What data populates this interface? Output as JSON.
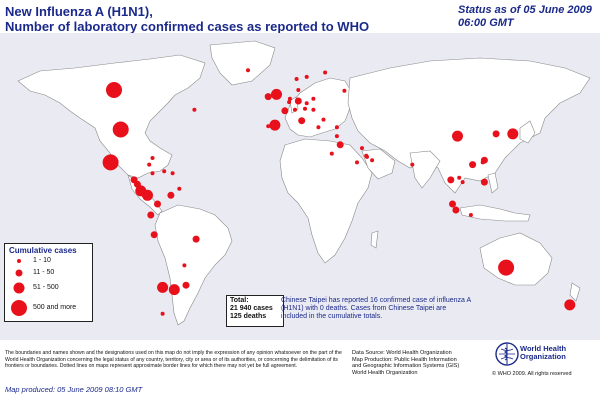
{
  "title_line1": "New Influenza A (H1N1),",
  "title_line2": "Number of  laboratory confirmed cases as reported to WHO",
  "status_line1": "Status as of 05 June 2009",
  "status_line2": "06:00 GMT",
  "colors": {
    "circle": "#e8101a",
    "ocean": "#e9eaf2",
    "land": "#ffffff",
    "border": "#8a8a8a",
    "text_blue": "#1b2a8a"
  },
  "legend": {
    "title": "Cumulative cases",
    "items": [
      {
        "label": "1 - 10",
        "r": 2
      },
      {
        "label": "11 - 50",
        "r": 3.5
      },
      {
        "label": "51 - 500",
        "r": 5.5
      },
      {
        "label": "500 and more",
        "r": 8
      }
    ]
  },
  "total": {
    "label": "Total:",
    "cases": "21 940 cases",
    "deaths": "125 deaths"
  },
  "taipei_note": "Chinese Taipei has reported 16 confirmed case of influenza A (H1N1) with 0 deaths. Cases from Chinese Taipei are included in the cumulative totals.",
  "disclaimer": "The boundaries and names shown and the designations used on this map do not imply the expression of any opinion whatsoever on the part of the World Health Organization concerning the legal status of any country, territory, city or area or of its authorities, or concerning the delimitation of its frontiers or boundaries.  Dotted lines on maps represent approximate border lines for which there may not yet be full agreement.",
  "source_lines": [
    "Data Source: World Health Organization",
    "Map Production: Public Health Information",
    "and Geographic Information Systems (GIS)",
    "World Health Organization"
  ],
  "who_name_line1": "World Health",
  "who_name_line2": "Organization",
  "copyright": "© WHO 2009. All rights reserved",
  "map_produced": "Map produced: 05 June 2009 08:10 GMT",
  "case_markers": [
    {
      "lon": -100,
      "lat": 56,
      "r": 8
    },
    {
      "lon": -96,
      "lat": 38,
      "r": 8
    },
    {
      "lon": -102,
      "lat": 23,
      "r": 8
    },
    {
      "lon": -20,
      "lat": 65,
      "r": 2
    },
    {
      "lon": -52,
      "lat": 47,
      "r": 2
    },
    {
      "lon": -65,
      "lat": 18,
      "r": 2
    },
    {
      "lon": -77,
      "lat": 18,
      "r": 2
    },
    {
      "lon": -79,
      "lat": 22,
      "r": 2
    },
    {
      "lon": -77,
      "lat": 25,
      "r": 2
    },
    {
      "lon": -88,
      "lat": 15,
      "r": 3.5
    },
    {
      "lon": -86,
      "lat": 13,
      "r": 3.5
    },
    {
      "lon": -84,
      "lat": 10,
      "r": 5.5
    },
    {
      "lon": -80,
      "lat": 8,
      "r": 5.5
    },
    {
      "lon": -74,
      "lat": 4,
      "r": 3.5
    },
    {
      "lon": -66,
      "lat": 8,
      "r": 3.5
    },
    {
      "lon": -70,
      "lat": 19,
      "r": 2
    },
    {
      "lon": -61,
      "lat": 11,
      "r": 2
    },
    {
      "lon": -78,
      "lat": -1,
      "r": 3.5
    },
    {
      "lon": -76,
      "lat": -10,
      "r": 3.5
    },
    {
      "lon": -51,
      "lat": -12,
      "r": 3.5
    },
    {
      "lon": -58,
      "lat": -24,
      "r": 2
    },
    {
      "lon": -57,
      "lat": -33,
      "r": 3.5
    },
    {
      "lon": -64,
      "lat": -35,
      "r": 5.5
    },
    {
      "lon": -71,
      "lat": -34,
      "r": 5.5
    },
    {
      "lon": -71,
      "lat": -46,
      "r": 2
    },
    {
      "lon": -3,
      "lat": 54,
      "r": 5.5
    },
    {
      "lon": -8,
      "lat": 53,
      "r": 3.5
    },
    {
      "lon": -4,
      "lat": 40,
      "r": 5.5
    },
    {
      "lon": -8,
      "lat": 39.5,
      "r": 2
    },
    {
      "lon": 2,
      "lat": 46.5,
      "r": 3.5
    },
    {
      "lon": 10,
      "lat": 51,
      "r": 3.5
    },
    {
      "lon": 5,
      "lat": 52,
      "r": 2
    },
    {
      "lon": 4.5,
      "lat": 50.5,
      "r": 2
    },
    {
      "lon": 8,
      "lat": 47,
      "r": 2
    },
    {
      "lon": 14,
      "lat": 47.5,
      "r": 2
    },
    {
      "lon": 12,
      "lat": 42,
      "r": 3.5
    },
    {
      "lon": 19,
      "lat": 52,
      "r": 2
    },
    {
      "lon": 10,
      "lat": 56,
      "r": 2
    },
    {
      "lon": 15,
      "lat": 62,
      "r": 2
    },
    {
      "lon": 9,
      "lat": 61,
      "r": 2
    },
    {
      "lon": 26,
      "lat": 64,
      "r": 2
    },
    {
      "lon": 22,
      "lat": 39,
      "r": 2
    },
    {
      "lon": 25,
      "lat": 42.5,
      "r": 2
    },
    {
      "lon": 19,
      "lat": 47,
      "r": 2
    },
    {
      "lon": 15,
      "lat": 50,
      "r": 2
    },
    {
      "lon": 33,
      "lat": 39,
      "r": 2
    },
    {
      "lon": 35,
      "lat": 31,
      "r": 3.5
    },
    {
      "lon": 30,
      "lat": 27,
      "r": 2
    },
    {
      "lon": 33,
      "lat": 35,
      "r": 2
    },
    {
      "lon": 37.5,
      "lat": 55.7,
      "r": 2
    },
    {
      "lon": 45,
      "lat": 23,
      "r": 2
    },
    {
      "lon": 48,
      "lat": 29.5,
      "r": 2
    },
    {
      "lon": 51,
      "lat": 25.5,
      "r": 2
    },
    {
      "lon": 50.5,
      "lat": 26,
      "r": 2
    },
    {
      "lon": 54,
      "lat": 24,
      "r": 2
    },
    {
      "lon": 105,
      "lat": 35,
      "r": 5.5
    },
    {
      "lon": 114,
      "lat": 22,
      "r": 3.5
    },
    {
      "lon": 128,
      "lat": 36,
      "r": 3.5
    },
    {
      "lon": 138,
      "lat": 36,
      "r": 5.5
    },
    {
      "lon": 121,
      "lat": 24,
      "r": 3.5
    },
    {
      "lon": 121,
      "lat": 14,
      "r": 3.5
    },
    {
      "lon": 101,
      "lat": 15,
      "r": 3.5
    },
    {
      "lon": 106,
      "lat": 16,
      "r": 2
    },
    {
      "lon": 108,
      "lat": 14,
      "r": 2
    },
    {
      "lon": 102,
      "lat": 4,
      "r": 3.5
    },
    {
      "lon": 104,
      "lat": 1.3,
      "r": 3.5
    },
    {
      "lon": 113,
      "lat": -1,
      "r": 2
    },
    {
      "lon": 78,
      "lat": 22,
      "r": 2
    },
    {
      "lon": 134,
      "lat": -25,
      "r": 8
    },
    {
      "lon": 172,
      "lat": -42,
      "r": 5.5
    },
    {
      "lon": 120,
      "lat": 23,
      "r": 2
    }
  ]
}
